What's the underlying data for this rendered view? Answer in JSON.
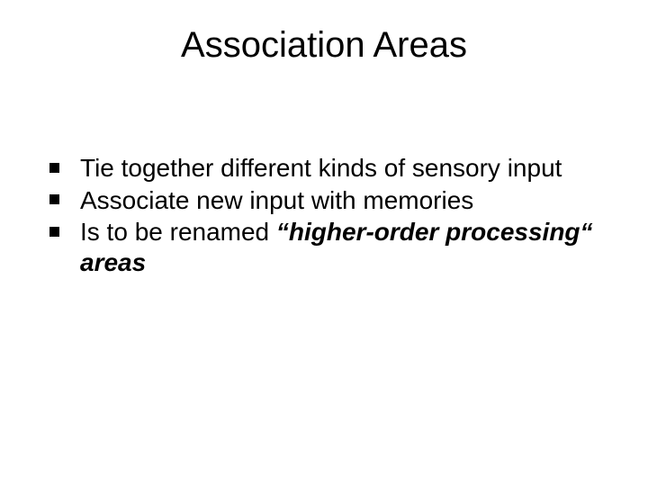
{
  "slide": {
    "title": "Association Areas",
    "bullets": [
      {
        "text": "Tie together different kinds of sensory input"
      },
      {
        "text": "Associate new input with memories"
      },
      {
        "prefix": "Is to be renamed ",
        "emph": "“higher-order processing“",
        "suffix": " areas"
      }
    ]
  },
  "style": {
    "background_color": "#ffffff",
    "text_color": "#000000",
    "title_fontsize": 40,
    "body_fontsize": 28,
    "font_family": "Arial",
    "bullet_marker": "square",
    "bullet_color": "#000000"
  }
}
